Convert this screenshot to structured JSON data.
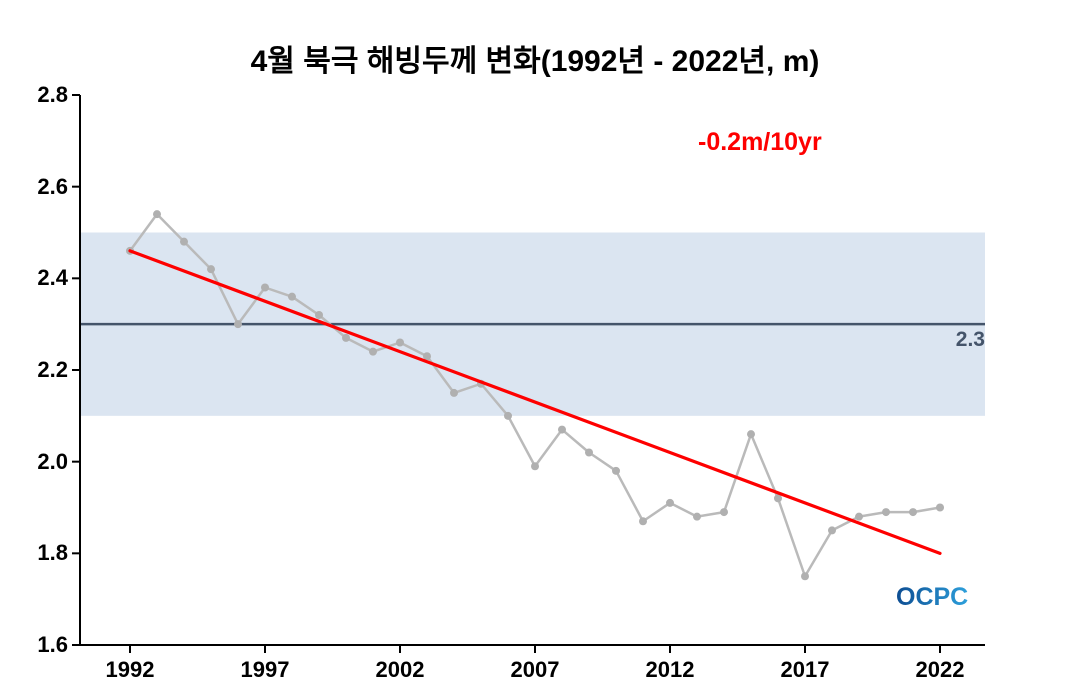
{
  "title": "4월 북극 해빙두께 변화(1992년 - 2022년, m)",
  "logo": {
    "text": "OCPC"
  },
  "colors": {
    "band": "#dbe5f1",
    "mean_line": "#44546a",
    "mean_label": "#44546a",
    "series_line": "#bababa",
    "marker": "#b0b0b0",
    "trend": "#fe0000",
    "axis": "#000000",
    "logo_dark": "#0d4d92",
    "logo_light": "#2da0dc"
  },
  "chart_data": {
    "type": "line",
    "title": "4월 북극 해빙두께 변화(1992년 - 2022년, m)",
    "xlabel": "",
    "ylabel": "",
    "ylim": [
      1.6,
      2.8
    ],
    "yticks": [
      1.6,
      1.8,
      2.0,
      2.2,
      2.4,
      2.6,
      2.8
    ],
    "ytick_labels": [
      "1.6",
      "1.8",
      "2.0",
      "2.2",
      "2.4",
      "2.6",
      "2.8"
    ],
    "xticks": [
      1992,
      1997,
      2002,
      2007,
      2012,
      2017,
      2022
    ],
    "x": [
      1992,
      1993,
      1994,
      1995,
      1996,
      1997,
      1998,
      1999,
      2000,
      2001,
      2002,
      2003,
      2004,
      2005,
      2006,
      2007,
      2008,
      2009,
      2010,
      2011,
      2012,
      2013,
      2014,
      2015,
      2016,
      2017,
      2018,
      2019,
      2020,
      2021,
      2022
    ],
    "values": [
      2.46,
      2.54,
      2.48,
      2.42,
      2.3,
      2.38,
      2.36,
      2.32,
      2.27,
      2.24,
      2.26,
      2.23,
      2.15,
      2.17,
      2.1,
      1.99,
      2.07,
      2.02,
      1.98,
      1.87,
      1.91,
      1.88,
      1.89,
      2.06,
      1.92,
      1.75,
      1.85,
      1.88,
      1.89,
      1.89,
      1.9
    ],
    "mean": 2.3,
    "mean_label": "2.3",
    "band": [
      2.1,
      2.5
    ],
    "trend": {
      "x": [
        1992,
        2022
      ],
      "y": [
        2.46,
        1.8
      ],
      "label": "-0.2m/10yr"
    },
    "grid": false,
    "legend": false
  }
}
